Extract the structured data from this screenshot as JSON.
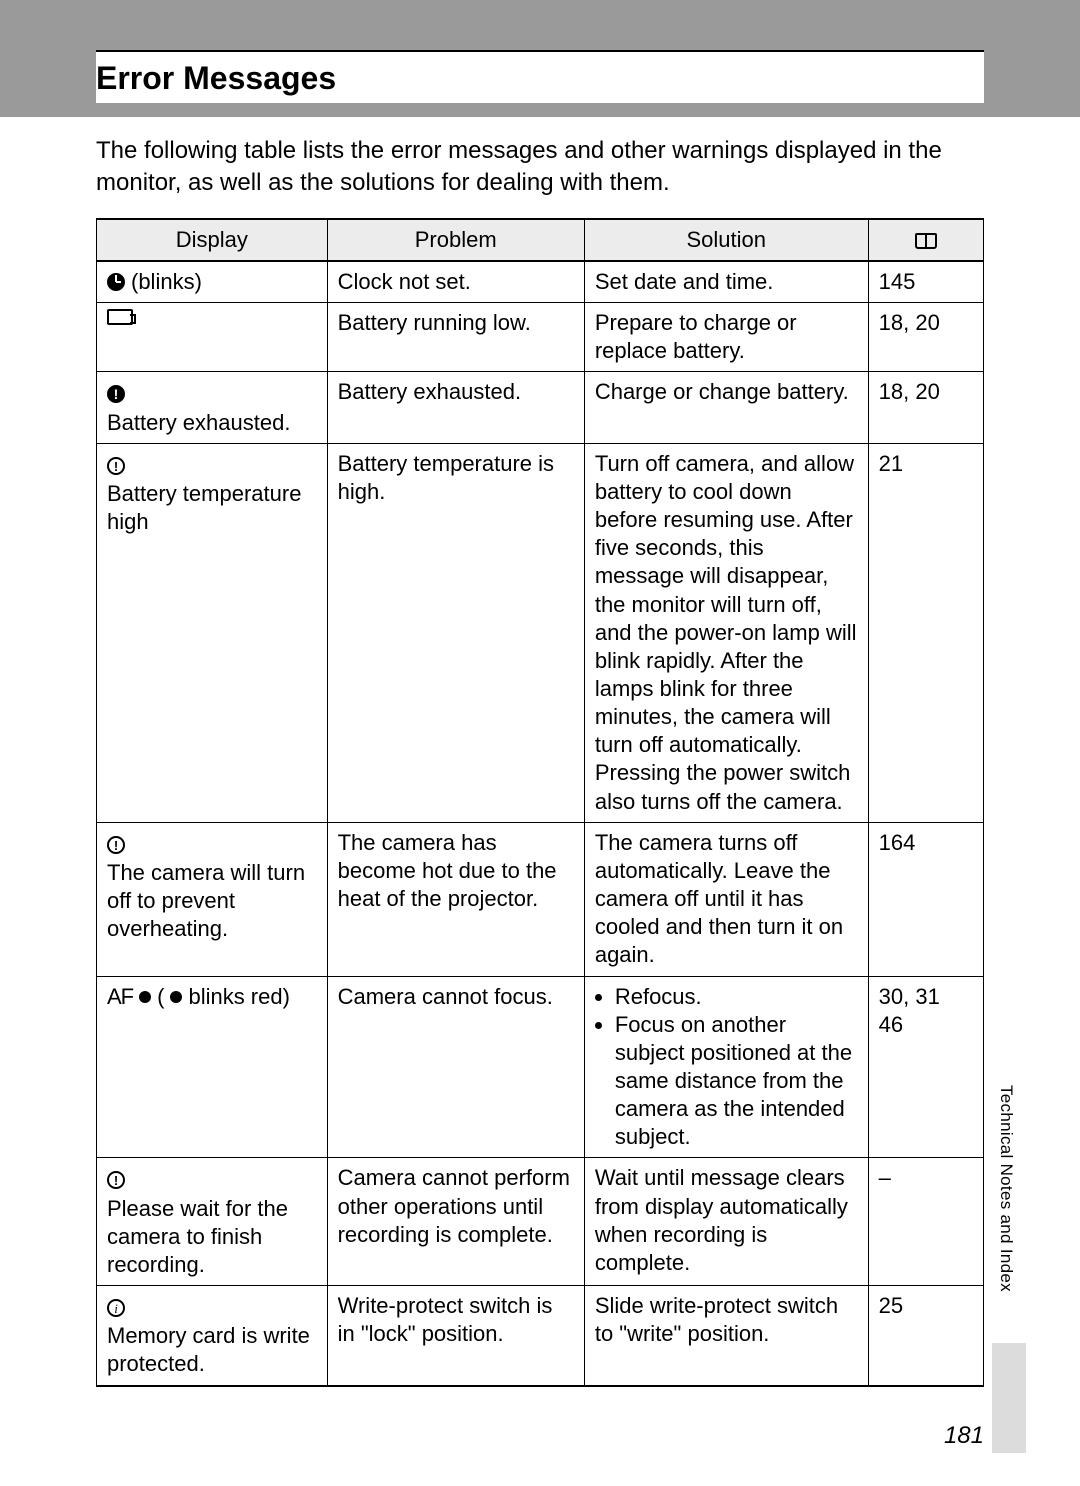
{
  "page_title": "Error Messages",
  "intro": "The following table lists the error messages and other warnings displayed in the monitor, as well as the solutions for dealing with them.",
  "side_text": "Technical Notes and Index",
  "page_number": "181",
  "table": {
    "headers": {
      "display": "Display",
      "problem": "Problem",
      "solution": "Solution"
    },
    "rows": [
      {
        "display_icon": "clock",
        "display_text": "(blinks)",
        "problem": "Clock not set.",
        "solution": "Set date and time.",
        "ref": "145"
      },
      {
        "display_icon": "battery",
        "display_text": "",
        "problem": "Battery running low.",
        "solution": "Prepare to charge or replace battery.",
        "ref": "18, 20"
      },
      {
        "display_icon": "warn-solid",
        "display_text": "Battery exhausted.",
        "problem": "Battery exhausted.",
        "solution": "Charge or change battery.",
        "ref": "18, 20"
      },
      {
        "display_icon": "warn-outline",
        "display_text": "Battery temperature high",
        "problem": "Battery temperature is high.",
        "solution": "Turn off camera, and allow battery to cool down before resuming use. After five seconds, this message will disappear, the monitor will turn off, and the power-on lamp will blink rapidly. After the lamps blink for three minutes, the camera will turn off automatically. Pressing the power switch also turns off the camera.",
        "ref": "21"
      },
      {
        "display_icon": "warn-outline",
        "display_text": "The camera will turn off to prevent overheating.",
        "problem": "The camera has become hot due to the heat of the projector.",
        "solution": "The camera turns off automatically. Leave the camera off until it has cooled and then turn it on again.",
        "ref": "164"
      },
      {
        "display_icon": "af-dot",
        "display_text": "blinks red)",
        "problem": "Camera cannot focus.",
        "solution_list": [
          "Refocus.",
          "Focus on another subject positioned at the same distance from the camera as the intended subject."
        ],
        "ref": "30, 31\n46"
      },
      {
        "display_icon": "warn-outline",
        "display_text": "Please wait for the camera to finish recording.",
        "problem": "Camera cannot perform other operations until recording is complete.",
        "solution": "Wait until message clears from display automatically when recording is complete.",
        "ref": "–"
      },
      {
        "display_icon": "info-outline",
        "display_text": "Memory card is write protected.",
        "problem": "Write-protect switch is in \"lock\" position.",
        "solution": "Slide write-protect switch to \"write\" position.",
        "ref": "25"
      }
    ]
  }
}
